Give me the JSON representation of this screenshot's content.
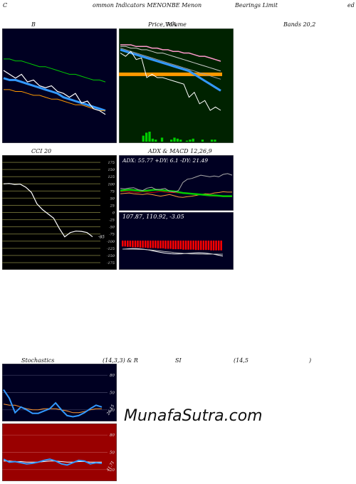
{
  "header": {
    "left": "C",
    "mid1": "ommon  Indicators MENONBE Menon",
    "mid2": "Bearings Limit",
    "right": "ed"
  },
  "panel_titles": {
    "b": "B",
    "price_ma": "Price,  MA",
    "price_ma_overlay": "Volume",
    "bands": "Bands 20,2",
    "cci": "CCI 20",
    "adx_macd": "ADX  & MACD 12,26,9",
    "stoch": "Stochastics",
    "stoch_params": "(14,3,3) & R",
    "rsi": "SI",
    "rsi_params": "(14,5",
    "rsi_close": ")"
  },
  "watermark": "MunafaSutra.com",
  "colors": {
    "dark_panel": "#000022",
    "green_panel": "#002200",
    "red_panel": "#990000",
    "price_white": "#ffffff",
    "ma_blue": "#3399ff",
    "ma_green": "#00cc00",
    "ma_orange": "#ff9900",
    "ma_pink": "#ff99cc",
    "grid_olive": "#666633"
  },
  "chart_data": [
    {
      "type": "line",
      "title": "B",
      "series": [
        {
          "values": [
            78,
            76,
            74,
            76,
            72,
            73,
            70,
            69,
            70,
            67,
            66,
            64,
            66,
            61,
            62,
            58,
            57,
            55
          ]
        },
        {
          "values": [
            74,
            73,
            73,
            72,
            71,
            70,
            69,
            68,
            67,
            66,
            64,
            63,
            62,
            61,
            60,
            59,
            58,
            57
          ]
        },
        {
          "values": [
            84,
            84,
            83,
            83,
            82,
            81,
            80,
            80,
            79,
            78,
            77,
            76,
            76,
            75,
            74,
            73,
            73,
            72
          ]
        },
        {
          "values": [
            68,
            68,
            67,
            67,
            66,
            65,
            65,
            64,
            63,
            63,
            62,
            61,
            60,
            60,
            59,
            58,
            57,
            57
          ]
        }
      ],
      "ylim": [
        40,
        100
      ]
    },
    {
      "type": "line",
      "title": "Price,  MA",
      "series": [
        {
          "values": [
            95,
            93,
            96,
            91,
            92,
            80,
            82,
            80,
            80,
            79,
            78,
            77,
            76,
            68,
            71,
            64,
            66,
            60,
            62,
            60
          ]
        },
        {
          "values": [
            97,
            96,
            95,
            94,
            93,
            92,
            91,
            90,
            89,
            88,
            87,
            86,
            85,
            84,
            82,
            80,
            78,
            76,
            74,
            72
          ]
        },
        {
          "values": [
            99,
            99,
            98,
            98,
            97,
            97,
            96,
            95,
            95,
            94,
            93,
            92,
            91,
            90,
            89,
            88,
            87,
            86,
            85,
            84
          ]
        },
        {
          "values": [
            100,
            100,
            100,
            99,
            99,
            99,
            98,
            98,
            97,
            97,
            96,
            96,
            95,
            95,
            94,
            93,
            93,
            92,
            91,
            90
          ]
        },
        {
          "values": [
            98,
            97,
            96,
            95,
            94,
            93,
            92,
            91,
            90,
            89,
            88,
            87,
            86,
            85,
            84,
            83,
            82,
            81,
            80,
            79
          ]
        }
      ],
      "orange_level": 82,
      "volume": [
        0,
        0,
        0,
        0,
        0,
        0,
        0,
        6,
        9,
        10,
        3,
        2,
        0,
        4,
        0,
        0,
        2,
        4,
        3,
        2,
        0,
        1,
        2,
        3,
        0,
        0,
        2,
        0,
        0,
        2,
        2,
        0
      ],
      "ylim": [
        40,
        110
      ]
    },
    {
      "type": "line",
      "title": "CCI 20",
      "yticks": [
        175,
        150,
        125,
        100,
        75,
        50,
        25,
        0,
        -25,
        -50,
        -75,
        -100,
        -125,
        -150,
        -175
      ],
      "values": [
        100,
        101,
        98,
        99,
        88,
        70,
        30,
        10,
        -5,
        -20,
        -55,
        -85,
        -70,
        -65,
        -66,
        -70,
        -85
      ],
      "last_label": "-85",
      "ylim": [
        -200,
        200
      ]
    },
    {
      "type": "line",
      "title": "ADX  & MACD 12,26,9",
      "legend": "ADX: 55.77  +DY: 6.1  -DY: 21.49",
      "series": [
        {
          "values": [
            55,
            54,
            56,
            57,
            52,
            50,
            56,
            58,
            52,
            53,
            55,
            48,
            46,
            50,
            70,
            78,
            80,
            84,
            88,
            86,
            84,
            86,
            84,
            90,
            92,
            88
          ]
        },
        {
          "values": [
            42,
            43,
            44,
            42,
            41,
            40,
            42,
            40,
            38,
            36,
            38,
            40,
            37,
            34,
            33,
            35,
            36,
            38,
            40,
            42,
            41,
            44,
            45,
            47,
            46,
            46
          ]
        },
        {
          "values": [
            47,
            48,
            47,
            46,
            45,
            47,
            46,
            45,
            46,
            48,
            46,
            45,
            45,
            44,
            43,
            42,
            41,
            40,
            39,
            38,
            37,
            36,
            36,
            35,
            35,
            35
          ]
        },
        {
          "values": [
            50,
            51,
            52,
            51,
            50,
            49,
            50,
            51,
            52,
            51,
            50,
            49,
            48,
            46,
            44,
            43,
            42,
            41,
            40,
            39,
            38,
            38,
            37,
            36,
            36,
            36
          ]
        }
      ],
      "macd_label": "107.87,   110.92,   -3.05",
      "macd": [
        -15,
        -15,
        -16,
        -16,
        -17,
        -17,
        -17,
        -18,
        -18,
        -18,
        -19,
        -19,
        -19,
        -19,
        -20,
        -20,
        -20,
        -21,
        -21,
        -21,
        -22,
        -22,
        -22,
        -22,
        -23,
        -23,
        -23,
        -23,
        -23,
        -24,
        -24,
        -24,
        -24,
        -24,
        -24,
        -25,
        -25,
        -25,
        -25,
        -25
      ]
    },
    {
      "type": "line",
      "title": "Stochastics (14,3,3)",
      "yticks": [
        80,
        50,
        20
      ],
      "series": [
        {
          "values": [
            55,
            40,
            15,
            25,
            20,
            14,
            14,
            18,
            22,
            32,
            20,
            10,
            8,
            10,
            15,
            22,
            28,
            25
          ]
        },
        {
          "values": [
            30,
            28,
            28,
            25,
            22,
            20,
            20,
            22,
            22,
            22,
            20,
            18,
            15,
            15,
            17,
            20,
            22,
            22
          ]
        }
      ],
      "last_label": "26.15",
      "ylim": [
        0,
        100
      ]
    },
    {
      "type": "line",
      "title": "RSI (14,5)",
      "yticks": [
        80,
        50,
        20
      ],
      "series": [
        {
          "values": [
            38,
            33,
            34,
            32,
            30,
            31,
            33,
            36,
            38,
            35,
            30,
            28,
            32,
            36,
            35,
            30,
            32,
            31
          ]
        },
        {
          "values": [
            35,
            35,
            34,
            34,
            33,
            33,
            33,
            34,
            35,
            35,
            34,
            33,
            33,
            34,
            34,
            33,
            33,
            33
          ]
        }
      ],
      "last_label": "41.71",
      "ylim": [
        0,
        100
      ]
    }
  ]
}
